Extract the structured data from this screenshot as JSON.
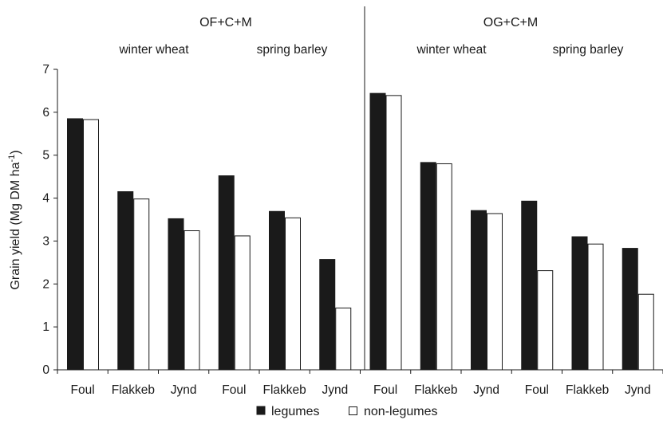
{
  "chart_data": {
    "type": "bar",
    "ylabel": "Grain yield (Mg DM ha",
    "ylabel_sup": "-1",
    "ylabel_end": ")",
    "ylim": [
      0,
      7
    ],
    "yticks": [
      "0",
      "1",
      "2",
      "3",
      "4",
      "5",
      "6",
      "7"
    ],
    "groups": [
      "OF+C+M",
      "OG+C+M"
    ],
    "subgroups": [
      "winter wheat",
      "spring barley",
      "winter wheat",
      "spring barley"
    ],
    "categories": [
      "Foul",
      "Flakkeb",
      "Jynd",
      "Foul",
      "Flakkeb",
      "Jynd",
      "Foul",
      "Flakkeb",
      "Jynd",
      "Foul",
      "Flakkeb",
      "Jynd"
    ],
    "series": [
      {
        "name": "legumes",
        "color": "#1a1a1a",
        "values": [
          5.85,
          4.15,
          3.52,
          4.52,
          3.69,
          2.57,
          6.44,
          4.83,
          3.71,
          3.93,
          3.1,
          2.83
        ]
      },
      {
        "name": "non-legumes",
        "color": "#ffffff",
        "values": [
          5.83,
          3.98,
          3.24,
          3.12,
          3.54,
          1.44,
          6.39,
          4.8,
          3.64,
          2.31,
          2.93,
          1.76
        ]
      }
    ],
    "legend_position": "bottom",
    "grid": false
  }
}
